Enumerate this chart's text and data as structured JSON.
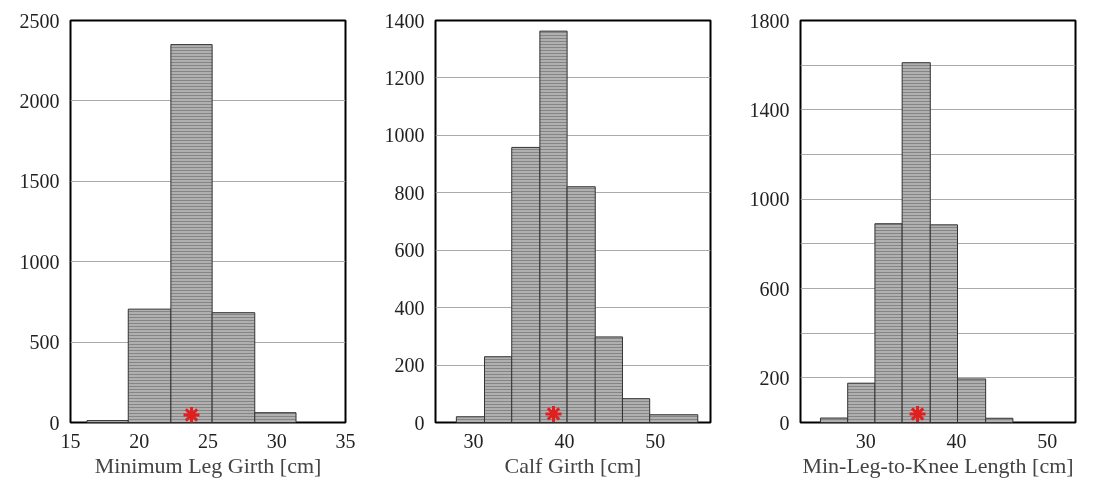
{
  "chart_data": [
    {
      "type": "histogram",
      "xlabel": "Minimum Leg Girth [cm]",
      "bins": [
        16.2,
        19.2,
        22.3,
        25.3,
        28.4,
        31.4
      ],
      "values": [
        12,
        705,
        2350,
        683,
        61
      ],
      "color": "#b0b0b0",
      "xlim": [
        15,
        35
      ],
      "xticks": [
        15,
        20,
        25,
        30,
        35
      ],
      "ylim": [
        0,
        2500
      ],
      "yticks": [
        0,
        500,
        1000,
        1500,
        2000,
        2500
      ],
      "grid": "y",
      "series": [
        {
          "type": "scatter",
          "x": [
            23.8
          ],
          "values": [
            47
          ],
          "color": "#e02020",
          "marker": "cross"
        }
      ]
    },
    {
      "type": "histogram",
      "xlabel": "Calf Girth [cm]",
      "bins": [
        28.1,
        31.2,
        34.2,
        37.3,
        40.3,
        43.4,
        46.4,
        49.4,
        54.7
      ],
      "values": [
        20,
        229,
        958,
        1363,
        821,
        298,
        83,
        27
      ],
      "color": "#b0b0b0",
      "xlim": [
        25.8,
        56.1
      ],
      "xticks": [
        30,
        40,
        50
      ],
      "ylim": [
        0,
        1400
      ],
      "yticks": [
        0,
        200,
        400,
        600,
        800,
        1000,
        1200,
        1400
      ],
      "grid": "y",
      "series": [
        {
          "type": "scatter",
          "x": [
            38.8
          ],
          "values": [
            30
          ],
          "color": "#e02020",
          "marker": "cross"
        }
      ]
    },
    {
      "type": "histogram",
      "xlabel": "Min-Leg-to-Knee Length [cm]",
      "bins": [
        25.0,
        28.0,
        31.0,
        34.0,
        37.1,
        40.1,
        43.2,
        46.2
      ],
      "values": [
        20,
        176,
        890,
        1611,
        885,
        195,
        19
      ],
      "color": "#b0b0b0",
      "xlim": [
        22.8,
        53.1
      ],
      "xticks": [
        30,
        40,
        50
      ],
      "ylim": [
        0,
        1800
      ],
      "yticks": [
        0,
        200,
        {
          "value": 400,
          "label": null
        },
        600,
        {
          "value": 800,
          "label": null
        },
        1000,
        {
          "value": 1200,
          "label": null
        },
        1400,
        {
          "value": 1600,
          "label": null
        },
        1800
      ],
      "grid": "y",
      "series": [
        {
          "type": "scatter",
          "x": [
            35.7
          ],
          "values": [
            38
          ],
          "color": "#e02020",
          "marker": "cross"
        }
      ]
    }
  ]
}
